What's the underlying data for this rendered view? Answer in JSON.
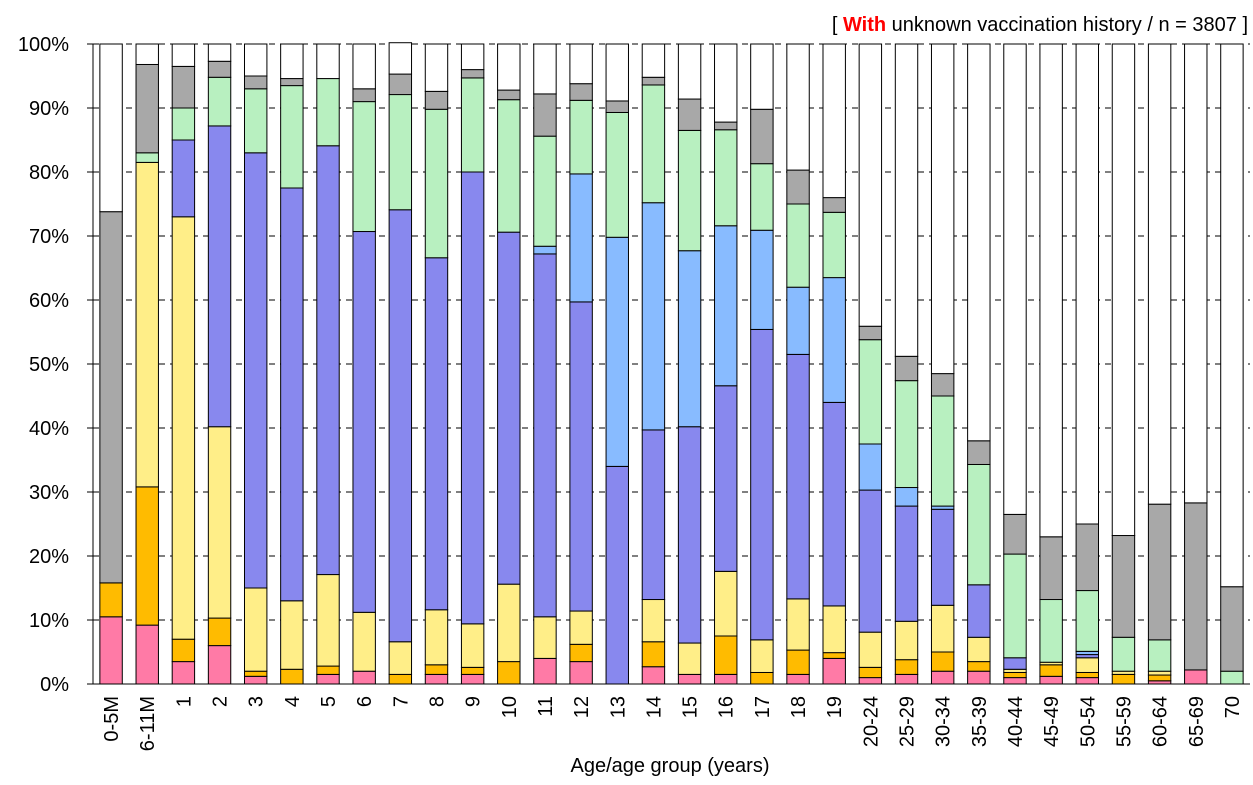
{
  "chart_data": {
    "type": "bar",
    "stacked": true,
    "title": "",
    "annotation": {
      "prefix": "[ ",
      "highlight": "With",
      "rest": " unknown vaccination history  / n = 3807 ]",
      "highlight_color": "#ff0000"
    },
    "xlabel": "Age/age group (years)",
    "ylabel": "",
    "ylim": [
      0,
      100
    ],
    "yticks": [
      0,
      10,
      20,
      30,
      40,
      50,
      60,
      70,
      80,
      90,
      100
    ],
    "ytick_suffix": "%",
    "grid": "dashed horizontal",
    "legend": "none",
    "categories": [
      "0-5M",
      "6-11M",
      "1",
      "2",
      "3",
      "4",
      "5",
      "6",
      "7",
      "8",
      "9",
      "10",
      "11",
      "12",
      "13",
      "14",
      "15",
      "16",
      "17",
      "18",
      "19",
      "20-24",
      "25-29",
      "30-34",
      "35-39",
      "40-44",
      "45-49",
      "50-54",
      "55-59",
      "60-64",
      "65-69",
      "70"
    ],
    "series": [
      {
        "color": "#ff7aa6",
        "values": [
          10.5,
          9.2,
          3.5,
          6.0,
          1.2,
          0,
          1.5,
          2.0,
          0,
          1.5,
          1.5,
          0,
          4.0,
          3.5,
          0,
          2.7,
          1.5,
          1.5,
          0,
          1.5,
          4.0,
          1.0,
          1.5,
          2.0,
          2.0,
          1.0,
          1.2,
          1.0,
          0,
          0.5,
          2.2,
          0
        ]
      },
      {
        "color": "#ffbb00",
        "values": [
          5.3,
          21.6,
          3.5,
          4.3,
          0.8,
          2.3,
          1.3,
          0,
          1.5,
          1.5,
          1.1,
          3.5,
          0,
          2.7,
          0,
          3.9,
          0,
          6.0,
          1.8,
          3.8,
          0.9,
          1.6,
          2.3,
          3.0,
          1.5,
          0.8,
          1.8,
          0.8,
          1.5,
          0.9,
          0,
          0
        ]
      },
      {
        "color": "#ffee88",
        "values": [
          0,
          50.7,
          66.0,
          29.9,
          13.0,
          10.7,
          14.3,
          9.2,
          5.1,
          8.6,
          6.8,
          12.1,
          6.5,
          5.2,
          0,
          6.6,
          4.9,
          10.1,
          5.1,
          8.0,
          7.3,
          5.5,
          6.0,
          7.3,
          3.8,
          0.5,
          0.4,
          2.3,
          0.5,
          0.6,
          0,
          0
        ]
      },
      {
        "color": "#8888ee",
        "values": [
          0,
          0,
          12.0,
          47.0,
          68.0,
          64.5,
          67.0,
          59.5,
          67.5,
          55.0,
          70.6,
          55.0,
          56.7,
          48.3,
          34.0,
          26.5,
          33.8,
          29.0,
          48.5,
          38.2,
          31.8,
          22.2,
          18.0,
          15.0,
          8.2,
          1.8,
          0,
          0.5,
          0,
          0,
          0,
          0
        ]
      },
      {
        "color": "#88bbff",
        "values": [
          0,
          0,
          0,
          0,
          0,
          0,
          0,
          0,
          0,
          0,
          0,
          0,
          1.2,
          20.0,
          35.8,
          35.5,
          27.5,
          25.0,
          15.5,
          10.5,
          19.5,
          7.2,
          2.9,
          0.5,
          0,
          0,
          0,
          0.5,
          0,
          0,
          0,
          0
        ]
      },
      {
        "color": "#b8f0c0",
        "values": [
          0,
          1.5,
          5.0,
          7.6,
          10.0,
          16.0,
          10.5,
          20.3,
          18.0,
          23.2,
          14.7,
          20.7,
          17.2,
          11.5,
          19.5,
          18.4,
          18.8,
          15.0,
          10.4,
          13.0,
          10.2,
          16.3,
          16.7,
          17.2,
          18.8,
          16.2,
          9.8,
          9.5,
          5.3,
          4.9,
          0,
          2.0
        ]
      },
      {
        "color": "#a8a8a8",
        "values": [
          58.0,
          13.8,
          6.5,
          2.5,
          2.0,
          1.1,
          0,
          2.0,
          3.2,
          2.8,
          1.3,
          1.5,
          6.6,
          2.6,
          1.8,
          1.2,
          4.9,
          1.2,
          8.5,
          5.3,
          2.3,
          2.1,
          3.8,
          3.5,
          3.7,
          6.2,
          9.8,
          10.4,
          15.9,
          21.2,
          26.1,
          13.2
        ]
      },
      {
        "color": "#ffffff",
        "values": [
          26.2,
          3.2,
          3.5,
          2.7,
          5.0,
          5.4,
          5.4,
          7.0,
          4.9,
          7.4,
          4.0,
          7.2,
          7.8,
          6.2,
          8.9,
          5.2,
          8.6,
          12.2,
          10.2,
          19.7,
          24.0,
          44.1,
          48.8,
          51.5,
          62.0,
          73.5,
          77.0,
          75.0,
          76.8,
          71.9,
          71.7,
          84.8
        ]
      }
    ]
  }
}
